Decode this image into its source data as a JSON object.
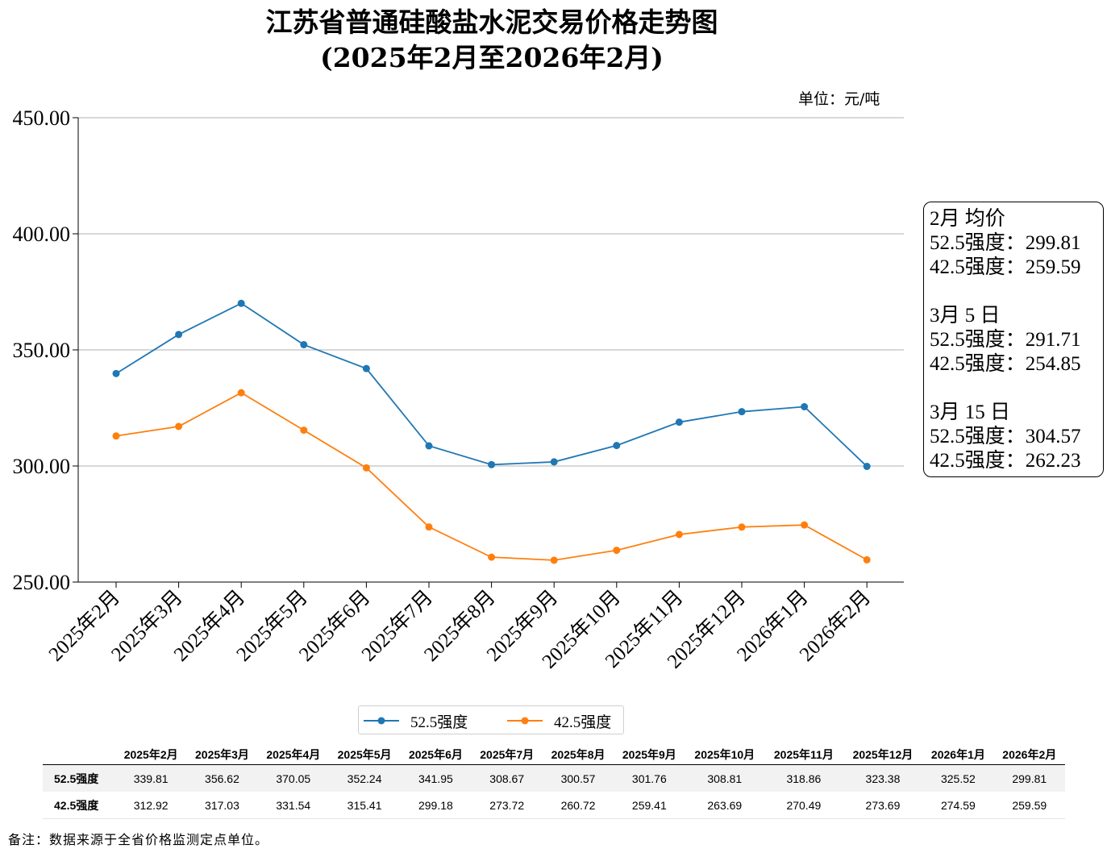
{
  "title_line1": "江苏省普通硅酸盐水泥交易价格走势图",
  "title_line2": "(2025年2月至2026年2月)",
  "unit": "单位：元/吨",
  "chart_data": {
    "type": "line",
    "categories": [
      "2025年2月",
      "2025年3月",
      "2025年4月",
      "2025年5月",
      "2025年6月",
      "2025年7月",
      "2025年8月",
      "2025年9月",
      "2025年10月",
      "2025年11月",
      "2025年12月",
      "2026年1月",
      "2026年2月"
    ],
    "series": [
      {
        "name": "52.5强度",
        "color": "#1f77b4",
        "values": [
          339.81,
          356.62,
          370.05,
          352.24,
          341.95,
          308.67,
          300.57,
          301.76,
          308.81,
          318.86,
          323.38,
          325.52,
          299.81
        ]
      },
      {
        "name": "42.5强度",
        "color": "#ff7f0e",
        "values": [
          312.92,
          317.03,
          331.54,
          315.41,
          299.18,
          273.72,
          260.72,
          259.41,
          263.69,
          270.49,
          273.69,
          274.59,
          259.59
        ]
      }
    ],
    "ylim": [
      250,
      450
    ],
    "yticks": [
      250,
      300,
      350,
      400,
      450
    ],
    "ytick_labels": [
      "250.00",
      "300.00",
      "350.00",
      "400.00",
      "450.00"
    ],
    "grid": "horizontal",
    "legend": "bottom-center"
  },
  "infobox": {
    "lines": [
      "2月 均价",
      "52.5强度：299.81",
      "42.5强度：259.59",
      "",
      "3月 5 日",
      "52.5强度：291.71",
      "42.5强度：254.85",
      "",
      "3月 15 日",
      "52.5强度：304.57",
      "42.5强度：262.23"
    ]
  },
  "table": {
    "rows": [
      {
        "label": "52.5强度",
        "values": [
          "339.81",
          "356.62",
          "370.05",
          "352.24",
          "341.95",
          "308.67",
          "300.57",
          "301.76",
          "308.81",
          "318.86",
          "323.38",
          "325.52",
          "299.81"
        ]
      },
      {
        "label": "42.5强度",
        "values": [
          "312.92",
          "317.03",
          "331.54",
          "315.41",
          "299.18",
          "273.72",
          "260.72",
          "259.41",
          "263.69",
          "270.49",
          "273.69",
          "274.59",
          "259.59"
        ]
      }
    ]
  },
  "note": "备注：数据来源于全省价格监测定点单位。"
}
